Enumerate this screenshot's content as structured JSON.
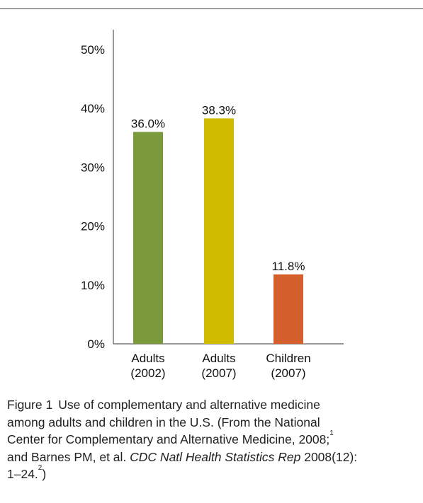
{
  "chart_data": {
    "type": "bar",
    "categories": [
      [
        "Adults",
        "(2002)"
      ],
      [
        "Adults",
        "(2007)"
      ],
      [
        "Children",
        "(2007)"
      ]
    ],
    "values": [
      36.0,
      38.3,
      11.8
    ],
    "value_labels": [
      "36.0%",
      "38.3%",
      "11.8%"
    ],
    "colors": [
      "#7a9a3b",
      "#d1bb00",
      "#d55f2c"
    ],
    "yticks": [
      "0%",
      "10%",
      "20%",
      "30%",
      "40%",
      "50%"
    ],
    "ylim": [
      0,
      50
    ],
    "grid": false
  },
  "caption": {
    "figure_number": "Figure 1",
    "line1": "Use of complementary and alternative medicine",
    "line2": "among adults and children in the U.S. (From the National",
    "line3": "Center for Complementary and Alternative Medicine, 2008;",
    "ref1": "1",
    "line4a": "and Barnes PM, et al. ",
    "journal": "CDC Natl Health Statistics Rep",
    "line4b": " 2008(12):",
    "line5": "1–24.",
    "ref2": "2",
    "line5_end": ")"
  }
}
